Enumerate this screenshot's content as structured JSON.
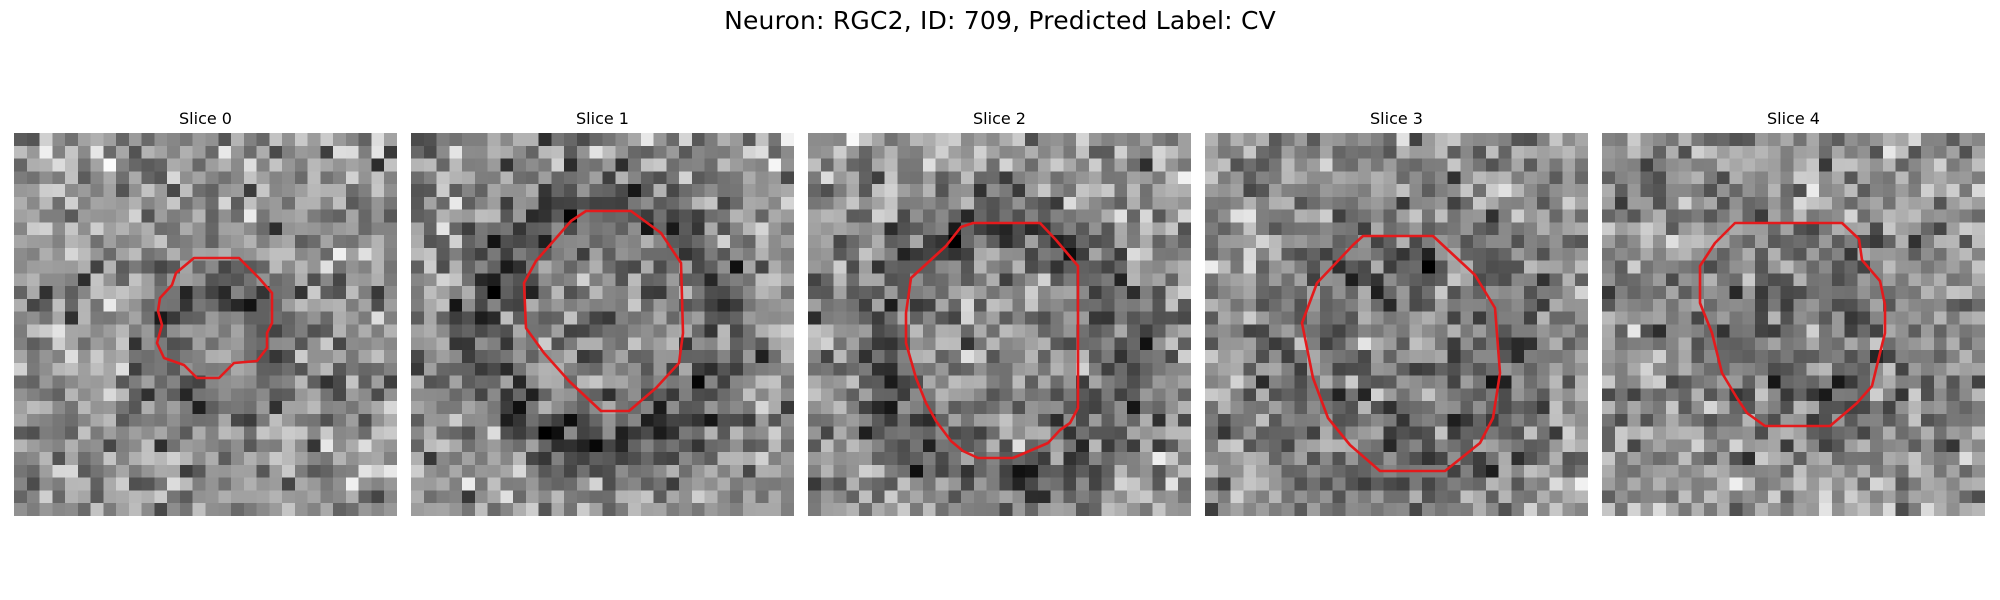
{
  "figure": {
    "title": "Neuron: RGC2, ID: 709, Predicted Label: CV",
    "contour_color": "#e41a1c"
  },
  "slices": [
    {
      "title": "Slice 0"
    },
    {
      "title": "Slice 1"
    },
    {
      "title": "Slice 2"
    },
    {
      "title": "Slice 3"
    },
    {
      "title": "Slice 4"
    }
  ]
}
